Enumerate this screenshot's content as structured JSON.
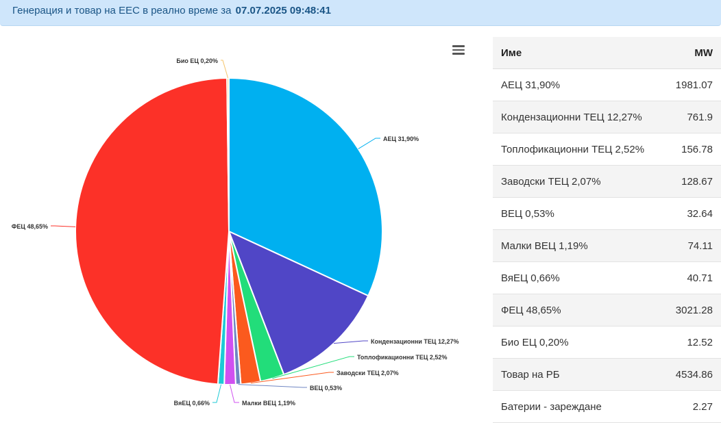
{
  "header": {
    "title_prefix": "Генерация и товар на ЕЕС в реално време за",
    "timestamp": "07.07.2025 09:48:41"
  },
  "menu_icon": "hamburger-menu-icon",
  "chart_data": {
    "type": "pie",
    "slices": [
      {
        "label": "АЕЦ 31,90%",
        "value": 31.9,
        "color": "#00b0f0"
      },
      {
        "label": "Кондензационни ТЕЦ 12,27%",
        "value": 12.27,
        "color": "#5046c6"
      },
      {
        "label": "Топлофикационни ТЕЦ 2,52%",
        "value": 2.52,
        "color": "#22dd7a"
      },
      {
        "label": "Заводски ТЕЦ 2,07%",
        "value": 2.07,
        "color": "#fb5a1e"
      },
      {
        "label": "ВЕЦ 0,53%",
        "value": 0.53,
        "color": "#6f86c2"
      },
      {
        "label": "Малки ВЕЦ 1,19%",
        "value": 1.19,
        "color": "#d050f0"
      },
      {
        "label": "ВяЕЦ 0,66%",
        "value": 0.66,
        "color": "#1ccad6"
      },
      {
        "label": "ФЕЦ 48,65%",
        "value": 48.65,
        "color": "#fc3128"
      },
      {
        "label": "Био ЕЦ 0,20%",
        "value": 0.2,
        "color": "#f5c46a"
      }
    ]
  },
  "table": {
    "headers": {
      "name": "Име",
      "mw": "MW"
    },
    "rows": [
      {
        "name": "АЕЦ 31,90%",
        "mw": "1981.07"
      },
      {
        "name": "Кондензационни ТЕЦ 12,27%",
        "mw": "761.9"
      },
      {
        "name": "Топлофикационни ТЕЦ 2,52%",
        "mw": "156.78"
      },
      {
        "name": "Заводски ТЕЦ 2,07%",
        "mw": "128.67"
      },
      {
        "name": "ВЕЦ 0,53%",
        "mw": "32.64"
      },
      {
        "name": "Малки ВЕЦ 1,19%",
        "mw": "74.11"
      },
      {
        "name": "ВяЕЦ 0,66%",
        "mw": "40.71"
      },
      {
        "name": "ФЕЦ 48,65%",
        "mw": "3021.28"
      },
      {
        "name": "Био ЕЦ 0,20%",
        "mw": "12.52"
      },
      {
        "name": "Товар на РБ",
        "mw": "4534.86"
      },
      {
        "name": "Батерии - зареждане",
        "mw": "2.27"
      }
    ]
  }
}
